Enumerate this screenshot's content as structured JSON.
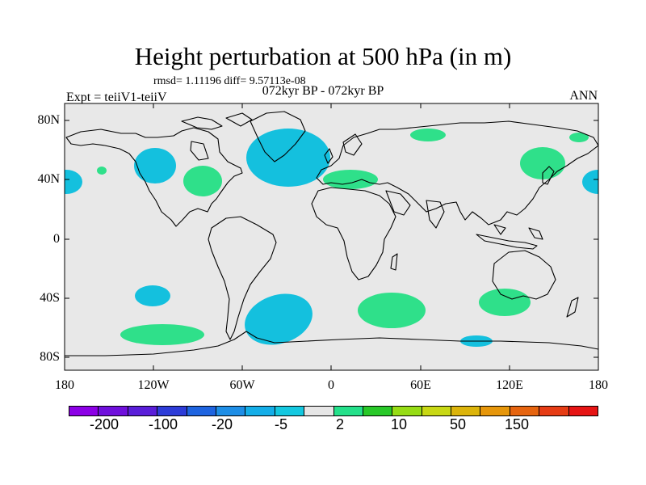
{
  "header": {
    "title": "Height perturbation at 500 hPa (in m)",
    "stats": "rmsd= 1.11196 diff= 9.57113e-08",
    "subtitle": "072kyr BP - 072kyr BP",
    "expt": "Expt = teiiV1-teiiV",
    "season": "ANN"
  },
  "axes": {
    "lat_labels": [
      "80N",
      "40N",
      "0",
      "40S",
      "80S"
    ],
    "lon_labels": [
      "180",
      "120W",
      "60W",
      "0",
      "60E",
      "120E",
      "180"
    ]
  },
  "colors": {
    "background_field": "#e8e8e8",
    "positive_small": "#2fe08a",
    "negative_small": "#14c0de",
    "land_outline": "#000000"
  },
  "colorbar": {
    "colors": [
      "#8c00e6",
      "#6f0fdc",
      "#5a1ed9",
      "#2d3cd8",
      "#1e64e0",
      "#1e8ee6",
      "#14aee8",
      "#14c8e0",
      "#e6e6e6",
      "#24e08a",
      "#28c828",
      "#96dc14",
      "#c8d814",
      "#dcb40a",
      "#e6960a",
      "#e6640f",
      "#e63c14",
      "#e61414"
    ],
    "labels": [
      "-200",
      "-100",
      "-20",
      "-5",
      "2",
      "10",
      "50",
      "150"
    ]
  },
  "anomalies": [
    {
      "sign": "negative",
      "region": "north-pacific"
    },
    {
      "sign": "positive",
      "region": "north-america"
    },
    {
      "sign": "negative",
      "region": "north-atlantic-greenland"
    },
    {
      "sign": "positive",
      "region": "mediterranean"
    },
    {
      "sign": "positive",
      "region": "west-siberia"
    },
    {
      "sign": "positive",
      "region": "east-asia"
    },
    {
      "sign": "positive",
      "region": "kamchatka"
    },
    {
      "sign": "negative",
      "region": "dateline-north"
    },
    {
      "sign": "negative",
      "region": "south-pacific-small"
    },
    {
      "sign": "positive",
      "region": "south-pacific"
    },
    {
      "sign": "negative",
      "region": "south-atlantic"
    },
    {
      "sign": "positive",
      "region": "south-indian-west"
    },
    {
      "sign": "positive",
      "region": "south-indian-east"
    },
    {
      "sign": "negative",
      "region": "southern-ocean-east"
    }
  ]
}
